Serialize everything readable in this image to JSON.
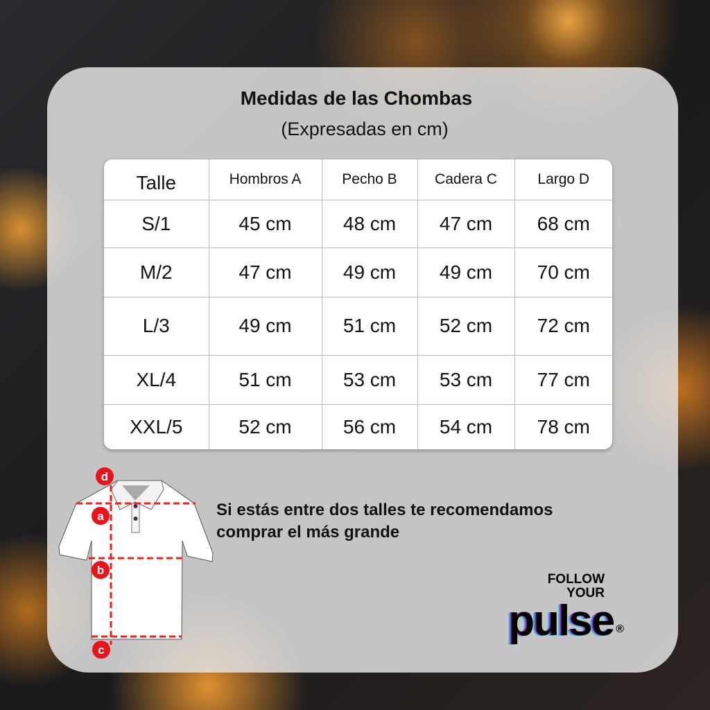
{
  "title": "Medidas de las Chombas",
  "subtitle": "(Expresadas en cm)",
  "table": {
    "headers": [
      "Talle",
      "Hombros A",
      "Pecho B",
      "Cadera C",
      "Largo D"
    ],
    "rows": [
      [
        "S/1",
        "45 cm",
        "48 cm",
        "47 cm",
        "68 cm"
      ],
      [
        "M/2",
        "47 cm",
        "49 cm",
        "49 cm",
        "70 cm"
      ],
      [
        "L/3",
        "49 cm",
        "51 cm",
        "52 cm",
        "72 cm"
      ],
      [
        "XL/4",
        "51 cm",
        "53 cm",
        "53 cm",
        "77 cm"
      ],
      [
        "XXL/5",
        "52 cm",
        "56 cm",
        "54 cm",
        "78 cm"
      ]
    ]
  },
  "diagram": {
    "markers": [
      "a",
      "b",
      "c",
      "d"
    ],
    "marker_color": "#e8141c"
  },
  "note": {
    "line1": "Si estás entre dos talles te  recomendamos",
    "line2": "comprar el más grande"
  },
  "logo": {
    "line1": "FOLLOW",
    "line2": "YOUR",
    "line3": "pulse",
    "mark": "®"
  }
}
